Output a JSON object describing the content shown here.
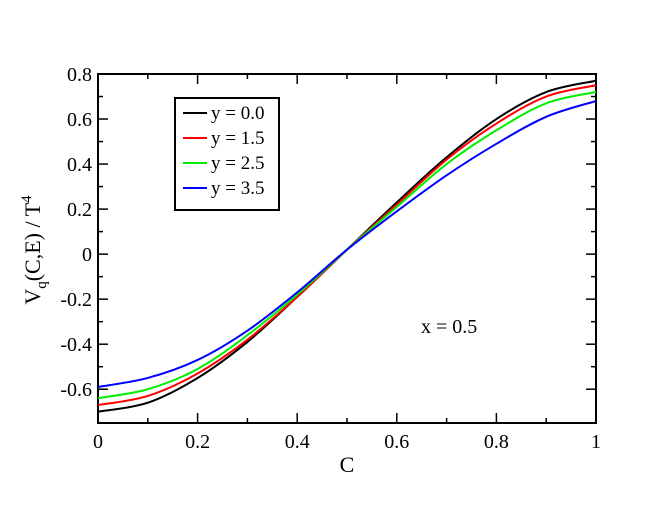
{
  "chart_data": {
    "type": "line",
    "xlabel": "C",
    "ylabel": {
      "main": "V",
      "sub": "q",
      "rest": "(C,E) / T",
      "sup": "4"
    },
    "xlim": [
      0,
      1
    ],
    "ylim": [
      -0.75,
      0.8
    ],
    "xticks": [
      0,
      0.2,
      0.4,
      0.6,
      0.8,
      1
    ],
    "xtick_labels": [
      "0",
      "0.2",
      "0.4",
      "0.6",
      "0.8",
      "1"
    ],
    "yticks": [
      -0.6,
      -0.4,
      -0.2,
      0,
      0.2,
      0.4,
      0.6,
      0.8
    ],
    "ytick_labels": [
      "-0.6",
      "-0.4",
      "-0.2",
      "0",
      "0.2",
      "0.4",
      "0.6",
      "0.8"
    ],
    "grid": false,
    "legend_position": "top-left",
    "annotation": "x = 0.5",
    "x": [
      0,
      0.1,
      0.2,
      0.3,
      0.4,
      0.5,
      0.6,
      0.7,
      0.8,
      0.9,
      1.0
    ],
    "series": [
      {
        "name": "y = 0.0",
        "color": "#000000",
        "values": [
          -0.7,
          -0.66,
          -0.55,
          -0.39,
          -0.19,
          0.02,
          0.23,
          0.43,
          0.6,
          0.72,
          0.77
        ]
      },
      {
        "name": "y = 1.5",
        "color": "#ff0000",
        "values": [
          -0.67,
          -0.63,
          -0.53,
          -0.38,
          -0.19,
          0.02,
          0.22,
          0.42,
          0.58,
          0.7,
          0.75
        ]
      },
      {
        "name": "y = 2.5",
        "color": "#00ee00",
        "values": [
          -0.64,
          -0.6,
          -0.51,
          -0.36,
          -0.18,
          0.02,
          0.21,
          0.4,
          0.55,
          0.67,
          0.72
        ]
      },
      {
        "name": "y = 3.5",
        "color": "#0000ff",
        "values": [
          -0.59,
          -0.55,
          -0.47,
          -0.34,
          -0.17,
          0.02,
          0.19,
          0.35,
          0.49,
          0.61,
          0.68
        ]
      }
    ]
  }
}
